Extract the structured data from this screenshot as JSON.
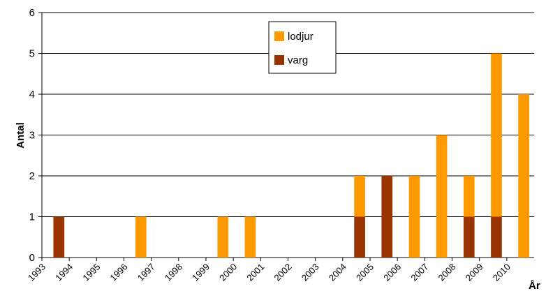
{
  "chart_data": {
    "type": "stacked_bar",
    "y_label": "Antal",
    "x_label": "År",
    "categories": [
      "1993",
      "1994",
      "1995",
      "1996",
      "1997",
      "1998",
      "1999",
      "2000",
      "2001",
      "2002",
      "2003",
      "2004",
      "2005",
      "2006",
      "2007",
      "2008",
      "2009",
      "2010"
    ],
    "series": [
      {
        "name": "varg",
        "color": "#993300",
        "values": [
          1,
          0,
          0,
          0,
          0,
          0,
          0,
          0,
          0,
          0,
          0,
          1,
          2,
          0,
          0,
          1,
          1,
          0
        ]
      },
      {
        "name": "lodjur",
        "color": "#ff9900",
        "values": [
          0,
          0,
          0,
          1,
          0,
          0,
          1,
          1,
          0,
          0,
          0,
          1,
          0,
          2,
          3,
          1,
          4,
          4
        ]
      }
    ],
    "ylim": [
      0,
      6
    ],
    "yticks": [
      0,
      1,
      2,
      3,
      4,
      5,
      6
    ],
    "grid": true
  }
}
